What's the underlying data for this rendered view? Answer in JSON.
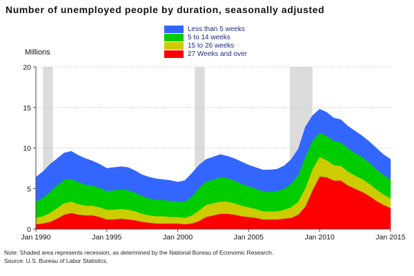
{
  "title": "Number of unemployed people by duration, seasonally adjusted",
  "chart_data": {
    "type": "area",
    "stacked": true,
    "title": "Number of unemployed people by duration, seasonally adjusted",
    "ylabel": "Millions",
    "xlabel": "",
    "ylim": [
      0,
      20
    ],
    "xlim": [
      1990.0,
      2015.0
    ],
    "y_ticks": [
      0,
      5,
      10,
      15,
      20
    ],
    "x_ticks": [
      {
        "value": 1990,
        "label": "Jan 1990"
      },
      {
        "value": 1995,
        "label": "Jan 1995"
      },
      {
        "value": 2000,
        "label": "Jan 2000"
      },
      {
        "value": 2005,
        "label": "Jan 2005"
      },
      {
        "value": 2010,
        "label": "Jan 2010"
      },
      {
        "value": 2015,
        "label": "Jan 2015"
      }
    ],
    "grid": "horizontal dotted",
    "legend_position": "top-center",
    "recessions": [
      [
        1990.5,
        1991.2
      ],
      [
        2001.2,
        2001.9
      ],
      [
        2007.9,
        2009.5
      ]
    ],
    "x": [
      1990.0,
      1990.5,
      1991.0,
      1991.5,
      1992.0,
      1992.5,
      1993.0,
      1993.5,
      1994.0,
      1994.5,
      1995.0,
      1995.5,
      1996.0,
      1996.5,
      1997.0,
      1997.5,
      1998.0,
      1998.5,
      1999.0,
      1999.5,
      2000.0,
      2000.5,
      2001.0,
      2001.5,
      2002.0,
      2002.5,
      2003.0,
      2003.5,
      2004.0,
      2004.5,
      2005.0,
      2005.5,
      2006.0,
      2006.5,
      2007.0,
      2007.5,
      2008.0,
      2008.5,
      2009.0,
      2009.5,
      2010.0,
      2010.5,
      2011.0,
      2011.5,
      2012.0,
      2012.5,
      2013.0,
      2013.5,
      2014.0,
      2014.5,
      2015.0
    ],
    "series": [
      {
        "name": "27 Weeks and over",
        "color": "#ff0000",
        "values": [
          0.6,
          0.7,
          0.9,
          1.3,
          1.8,
          2.0,
          1.8,
          1.7,
          1.7,
          1.5,
          1.2,
          1.2,
          1.3,
          1.2,
          1.1,
          0.9,
          0.8,
          0.7,
          0.7,
          0.7,
          0.7,
          0.6,
          0.7,
          1.0,
          1.5,
          1.7,
          1.9,
          1.9,
          1.8,
          1.6,
          1.5,
          1.4,
          1.2,
          1.2,
          1.2,
          1.3,
          1.4,
          1.8,
          2.8,
          4.8,
          6.5,
          6.4,
          6.0,
          6.0,
          5.4,
          5.0,
          4.6,
          4.1,
          3.5,
          3.0,
          2.6
        ]
      },
      {
        "name": "15 to 26 weeks",
        "color": "#cccc00",
        "values": [
          0.8,
          0.9,
          1.1,
          1.3,
          1.4,
          1.4,
          1.3,
          1.2,
          1.2,
          1.2,
          1.2,
          1.2,
          1.2,
          1.2,
          1.1,
          1.0,
          0.9,
          0.9,
          0.9,
          0.8,
          0.8,
          0.8,
          1.0,
          1.3,
          1.5,
          1.5,
          1.5,
          1.5,
          1.4,
          1.3,
          1.2,
          1.1,
          1.0,
          1.0,
          1.0,
          1.1,
          1.3,
          1.6,
          2.3,
          2.6,
          2.4,
          2.1,
          1.9,
          1.8,
          1.7,
          1.6,
          1.6,
          1.5,
          1.4,
          1.3,
          1.2
        ]
      },
      {
        "name": "5 to 14 weeks",
        "color": "#00cc00",
        "values": [
          2.0,
          2.3,
          2.6,
          2.8,
          2.9,
          2.8,
          2.7,
          2.6,
          2.5,
          2.4,
          2.3,
          2.4,
          2.4,
          2.4,
          2.3,
          2.2,
          2.1,
          2.0,
          2.0,
          2.0,
          1.9,
          2.0,
          2.3,
          2.8,
          2.9,
          2.9,
          3.0,
          2.9,
          2.8,
          2.7,
          2.6,
          2.5,
          2.5,
          2.4,
          2.5,
          2.6,
          2.9,
          3.3,
          3.9,
          3.5,
          3.0,
          3.0,
          3.0,
          2.9,
          2.9,
          2.8,
          2.7,
          2.6,
          2.5,
          2.4,
          2.3
        ]
      },
      {
        "name": "Less than 5 weeks",
        "color": "#3366ff",
        "values": [
          3.0,
          3.2,
          3.4,
          3.3,
          3.3,
          3.4,
          3.3,
          3.2,
          3.0,
          2.9,
          2.8,
          2.8,
          2.8,
          2.8,
          2.7,
          2.6,
          2.6,
          2.6,
          2.5,
          2.5,
          2.4,
          2.6,
          2.9,
          2.8,
          2.7,
          2.8,
          2.8,
          2.7,
          2.7,
          2.7,
          2.6,
          2.6,
          2.6,
          2.7,
          2.7,
          2.8,
          3.0,
          3.2,
          3.6,
          3.1,
          2.9,
          2.9,
          2.8,
          2.8,
          2.7,
          2.7,
          2.6,
          2.6,
          2.6,
          2.5,
          2.5
        ]
      }
    ]
  },
  "legend": {
    "items": [
      {
        "label": "Less than 5 weeks",
        "color": "#3366ff"
      },
      {
        "label": "5 to 14 weeks",
        "color": "#00cc00"
      },
      {
        "label": "15 to 26 weeks",
        "color": "#cccc00"
      },
      {
        "label": "27 Weeks and over",
        "color": "#ff0000"
      }
    ]
  },
  "notes": {
    "note": "Note: Shaded area represents recession, as determined by the National Bureau of Economic Research.",
    "source": "Source: U.S. Bureau of Labor Statistics."
  }
}
